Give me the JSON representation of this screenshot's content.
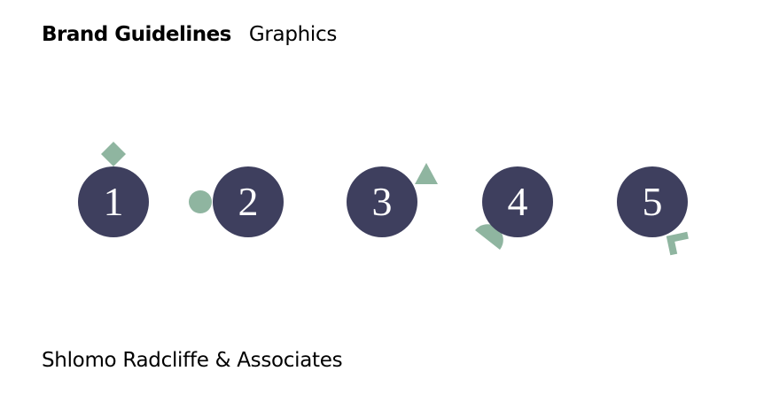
{
  "header": {
    "brand_title": "Brand Guidelines",
    "section_title": "Graphics"
  },
  "graphics": {
    "items": [
      {
        "number": "1",
        "accent": "diamond"
      },
      {
        "number": "2",
        "accent": "circle"
      },
      {
        "number": "3",
        "accent": "triangle"
      },
      {
        "number": "4",
        "accent": "half-circle"
      },
      {
        "number": "5",
        "accent": "corner-bracket"
      }
    ]
  },
  "footer": {
    "company_name": "Shlomo Radcliffe & Associates"
  },
  "colors": {
    "circle": "#3e3f5e",
    "accent": "#8fb5a0",
    "text": "#000000",
    "background": "#ffffff"
  }
}
